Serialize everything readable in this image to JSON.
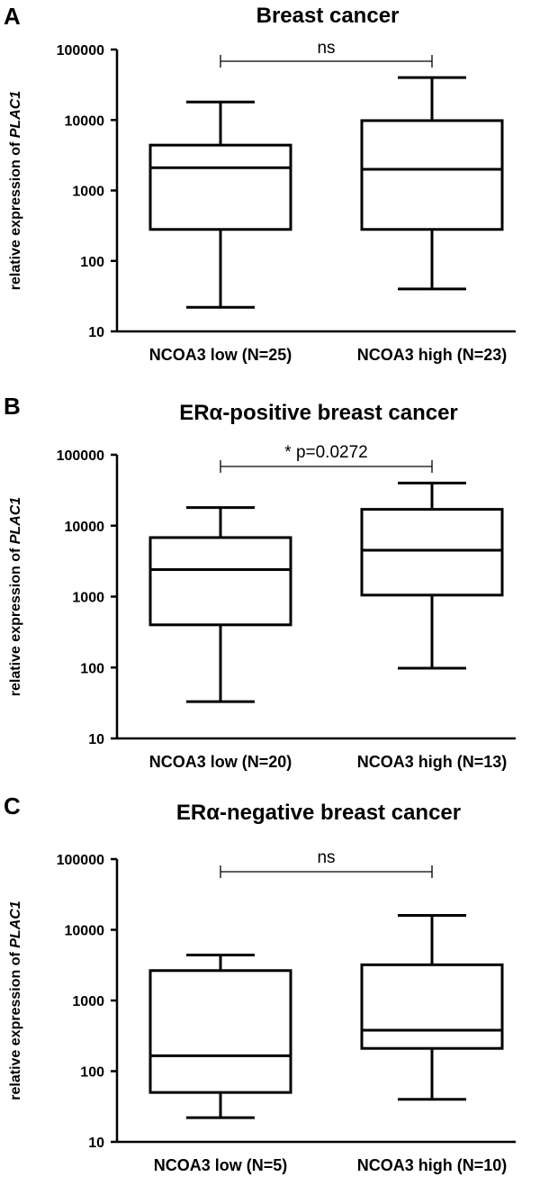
{
  "figure": {
    "panels": [
      {
        "letter": "A",
        "title": "Breast cancer"
      },
      {
        "letter": "B",
        "title": "ERα-positive breast cancer"
      },
      {
        "letter": "C",
        "title": "ERα-negative breast cancer"
      }
    ]
  },
  "chart_data": [
    {
      "type": "boxplot",
      "title": "Breast cancer",
      "ylabel_prefix": "relative expression of ",
      "ylabel_italic": "PLAC1",
      "yscale": "log",
      "ylim": [
        10,
        100000
      ],
      "yticks": [
        10,
        100,
        1000,
        10000,
        100000
      ],
      "ytick_labels": [
        "10",
        "100",
        "1000",
        "10000",
        "100000"
      ],
      "categories": [
        "NCOA3 low (N=25)",
        "NCOA3 high (N=23)"
      ],
      "boxes": [
        {
          "min": 22,
          "q1": 280,
          "median": 2100,
          "q3": 4400,
          "max": 18000
        },
        {
          "min": 40,
          "q1": 280,
          "median": 2000,
          "q3": 9800,
          "max": 40000
        }
      ],
      "significance": "ns"
    },
    {
      "type": "boxplot",
      "title": "ERα-positive breast cancer",
      "ylabel_prefix": "relative expression of ",
      "ylabel_italic": "PLAC1",
      "yscale": "log",
      "ylim": [
        10,
        100000
      ],
      "yticks": [
        10,
        100,
        1000,
        10000,
        100000
      ],
      "ytick_labels": [
        "10",
        "100",
        "1000",
        "10000",
        "100000"
      ],
      "categories": [
        "NCOA3 low (N=20)",
        "NCOA3 high (N=13)"
      ],
      "boxes": [
        {
          "min": 33,
          "q1": 400,
          "median": 2400,
          "q3": 6800,
          "max": 18000
        },
        {
          "min": 98,
          "q1": 1050,
          "median": 4500,
          "q3": 17000,
          "max": 40000
        }
      ],
      "significance": "* p=0.0272"
    },
    {
      "type": "boxplot",
      "title": "ERα-negative breast cancer",
      "ylabel_prefix": "relative expression of ",
      "ylabel_italic": "PLAC1",
      "yscale": "log",
      "ylim": [
        10,
        100000
      ],
      "yticks": [
        10,
        100,
        1000,
        10000,
        100000
      ],
      "ytick_labels": [
        "10",
        "100",
        "1000",
        "10000",
        "100000"
      ],
      "categories": [
        "NCOA3 low (N=5)",
        "NCOA3 high (N=10)"
      ],
      "boxes": [
        {
          "min": 22,
          "q1": 50,
          "median": 165,
          "q3": 2650,
          "max": 4400
        },
        {
          "min": 40,
          "q1": 210,
          "median": 380,
          "q3": 3200,
          "max": 16000
        }
      ],
      "significance": "ns"
    }
  ]
}
